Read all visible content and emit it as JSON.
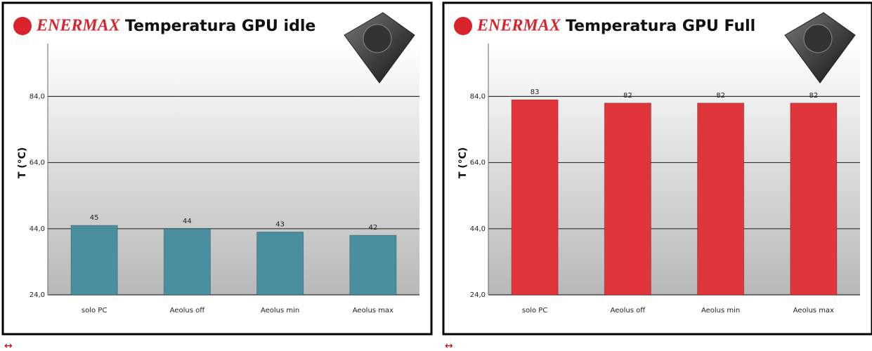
{
  "brand": "ENERMAX",
  "captions": [
    "↔",
    "↔"
  ],
  "chart_data": [
    {
      "type": "bar",
      "title": "Temperatura GPU idle",
      "y_label": "T (°C)",
      "categories": [
        "solo PC",
        "Aeolus off",
        "Aeolus min",
        "Aeolus max"
      ],
      "values": [
        45,
        44,
        43,
        42
      ],
      "color": "#4a8fa0",
      "ylim": [
        24,
        100
      ],
      "yticks": [
        {
          "value": 24,
          "label": "24,0"
        },
        {
          "value": 44,
          "label": "44,0"
        },
        {
          "value": 64,
          "label": "64,0"
        },
        {
          "value": 84,
          "label": "84,0"
        }
      ],
      "grid": true
    },
    {
      "type": "bar",
      "title": "Temperatura GPU Full",
      "y_label": "T (°C)",
      "categories": [
        "solo PC",
        "Aeolus off",
        "Aeolus min",
        "Aeolus max"
      ],
      "values": [
        83,
        82,
        82,
        82
      ],
      "color": "#e0353a",
      "ylim": [
        24,
        100
      ],
      "yticks": [
        {
          "value": 24,
          "label": "24,0"
        },
        {
          "value": 44,
          "label": "44,0"
        },
        {
          "value": 64,
          "label": "64,0"
        },
        {
          "value": 84,
          "label": "84,0"
        }
      ],
      "grid": true
    }
  ]
}
